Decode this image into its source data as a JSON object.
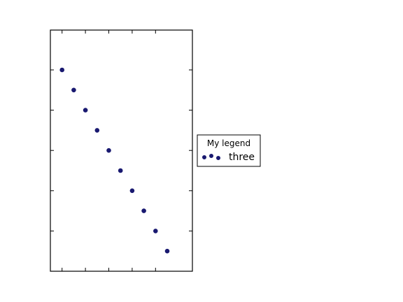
{
  "chart_data": {
    "type": "scatter",
    "title": "",
    "xlabel": "",
    "ylabel": "",
    "xlim": [
      0,
      10
    ],
    "ylim": [
      0,
      12
    ],
    "grid": false,
    "legend": {
      "title": "My legend",
      "placement": "outside-right",
      "entries": [
        {
          "label": "three",
          "series_index": 0
        }
      ]
    },
    "series": [
      {
        "name": "three",
        "marker": "circle",
        "color": "#191970",
        "x": [
          1,
          1.5,
          2,
          2.5,
          3,
          3.5,
          4,
          4.5,
          5,
          5.5
        ],
        "y": [
          10,
          9,
          8,
          7,
          6,
          5,
          4,
          3,
          2,
          1
        ]
      }
    ],
    "x_ticks": [
      1,
      2,
      3,
      4,
      5
    ],
    "y_ticks": [
      2,
      4,
      6,
      8,
      10
    ],
    "colors": {
      "axes": "#000000",
      "background": "#ffffff"
    }
  }
}
